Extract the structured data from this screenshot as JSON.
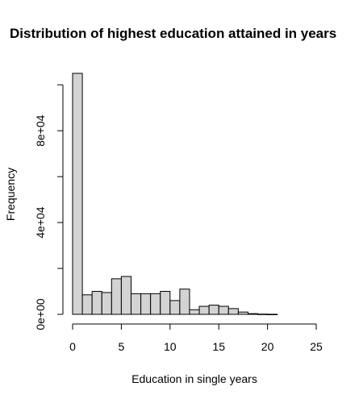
{
  "chart_data": {
    "type": "bar",
    "title": "Distribution of highest education attained in years",
    "xlabel": "Education in single years",
    "ylabel": "Frequency",
    "bin_width": 1,
    "x_ticks": [
      0,
      5,
      10,
      15,
      20,
      25
    ],
    "y_ticks": [
      0,
      40000,
      80000
    ],
    "y_tick_labels": [
      "0e+00",
      "4e+04",
      "8e+04"
    ],
    "xlim": [
      0,
      25
    ],
    "ylim": [
      0,
      105000
    ],
    "bins": [
      {
        "start": 0,
        "end": 1,
        "count": 105000
      },
      {
        "start": 1,
        "end": 2,
        "count": 8500
      },
      {
        "start": 2,
        "end": 3,
        "count": 10000
      },
      {
        "start": 3,
        "end": 4,
        "count": 9500
      },
      {
        "start": 4,
        "end": 5,
        "count": 15500
      },
      {
        "start": 5,
        "end": 6,
        "count": 16500
      },
      {
        "start": 6,
        "end": 7,
        "count": 9000
      },
      {
        "start": 7,
        "end": 8,
        "count": 9000
      },
      {
        "start": 8,
        "end": 9,
        "count": 9000
      },
      {
        "start": 9,
        "end": 10,
        "count": 10000
      },
      {
        "start": 10,
        "end": 11,
        "count": 6000
      },
      {
        "start": 11,
        "end": 12,
        "count": 11000
      },
      {
        "start": 12,
        "end": 13,
        "count": 2000
      },
      {
        "start": 13,
        "end": 14,
        "count": 3500
      },
      {
        "start": 14,
        "end": 15,
        "count": 4000
      },
      {
        "start": 15,
        "end": 16,
        "count": 3500
      },
      {
        "start": 16,
        "end": 17,
        "count": 2500
      },
      {
        "start": 17,
        "end": 18,
        "count": 1000
      },
      {
        "start": 18,
        "end": 19,
        "count": 300
      },
      {
        "start": 19,
        "end": 20,
        "count": 100
      },
      {
        "start": 20,
        "end": 21,
        "count": 30
      }
    ],
    "bar_fill": "#d3d3d3",
    "bar_stroke": "#000000",
    "grid": false,
    "legend": "none"
  }
}
